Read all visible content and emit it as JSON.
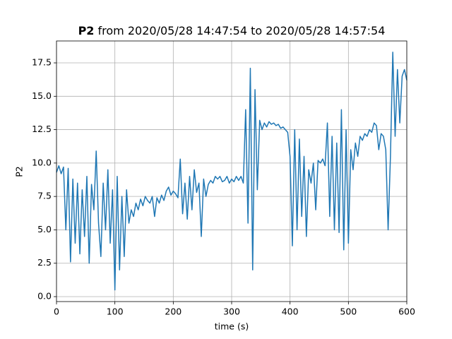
{
  "chart_data": {
    "type": "line",
    "title": {
      "bold": "P2",
      "text": "from 2020/05/28 14:47:54 to 2020/05/28 14:57:54"
    },
    "xlabel": "time (s)",
    "ylabel": "P2",
    "x": [
      0,
      4,
      8,
      12,
      16,
      20,
      24,
      28,
      32,
      36,
      40,
      44,
      48,
      52,
      56,
      60,
      64,
      68,
      72,
      76,
      80,
      84,
      88,
      92,
      96,
      100,
      104,
      108,
      112,
      116,
      120,
      124,
      128,
      132,
      136,
      140,
      144,
      148,
      152,
      156,
      160,
      164,
      168,
      172,
      176,
      180,
      184,
      188,
      192,
      196,
      200,
      204,
      208,
      212,
      216,
      220,
      224,
      228,
      232,
      236,
      240,
      244,
      248,
      252,
      256,
      260,
      264,
      268,
      272,
      276,
      280,
      284,
      288,
      292,
      296,
      300,
      304,
      308,
      312,
      316,
      320,
      324,
      328,
      332,
      336,
      340,
      344,
      348,
      352,
      356,
      360,
      364,
      368,
      372,
      376,
      380,
      384,
      388,
      392,
      396,
      400,
      404,
      408,
      412,
      416,
      420,
      424,
      428,
      432,
      436,
      440,
      444,
      448,
      452,
      456,
      460,
      464,
      468,
      472,
      476,
      480,
      484,
      488,
      492,
      496,
      500,
      504,
      508,
      512,
      516,
      520,
      524,
      528,
      532,
      536,
      540,
      544,
      548,
      552,
      556,
      560,
      564,
      568,
      572,
      576,
      580,
      584,
      588,
      592,
      596,
      600
    ],
    "series": [
      {
        "color": "#1f77b4",
        "values": [
          9.3,
          9.8,
          9.2,
          9.7,
          5.0,
          9.6,
          2.6,
          8.8,
          4.0,
          8.5,
          3.2,
          8.0,
          4.5,
          9.0,
          2.5,
          8.4,
          6.5,
          10.9,
          5.5,
          3.0,
          8.5,
          5.0,
          9.5,
          4.0,
          8.0,
          0.5,
          9.0,
          2.0,
          7.5,
          3.0,
          8.0,
          5.5,
          6.5,
          6.0,
          7.0,
          6.5,
          7.3,
          6.8,
          7.5,
          7.2,
          7.0,
          7.5,
          6.0,
          7.4,
          7.0,
          7.6,
          7.2,
          7.9,
          8.2,
          7.6,
          7.9,
          7.7,
          7.4,
          10.3,
          6.2,
          8.5,
          5.8,
          9.0,
          6.5,
          9.5,
          7.8,
          8.5,
          4.5,
          8.8,
          7.5,
          8.4,
          8.7,
          8.5,
          9.0,
          8.8,
          9.0,
          8.6,
          8.7,
          9.0,
          8.5,
          8.8,
          8.6,
          9.0,
          8.7,
          9.0,
          8.5,
          14.0,
          5.5,
          17.1,
          2.0,
          15.5,
          8.0,
          13.2,
          12.5,
          13.0,
          12.7,
          13.1,
          12.9,
          13.0,
          12.8,
          12.9,
          12.6,
          12.7,
          12.5,
          12.3,
          10.5,
          3.8,
          12.5,
          5.0,
          11.8,
          6.0,
          10.5,
          4.5,
          9.5,
          8.5,
          10.0,
          6.5,
          10.2,
          10.0,
          10.3,
          9.8,
          13.0,
          6.0,
          12.0,
          5.0,
          11.5,
          4.8,
          14.0,
          3.5,
          12.5,
          4.0,
          11.0,
          9.5,
          11.5,
          10.5,
          12.0,
          11.7,
          12.2,
          12.0,
          12.5,
          12.3,
          13.0,
          12.8,
          11.0,
          12.2,
          12.0,
          11.0,
          5.0,
          10.5,
          18.3,
          12.0,
          17.0,
          13.0,
          16.5,
          17.0,
          16.2
        ]
      }
    ],
    "xlim": [
      0,
      600
    ],
    "xticks": [
      0,
      100,
      200,
      300,
      400,
      500,
      600
    ],
    "ylim": [
      -0.37,
      19.14
    ],
    "yticks": [
      {
        "value": 0,
        "label": "0.0"
      },
      2.5,
      {
        "value": 5,
        "label": "5.0"
      },
      7.5,
      {
        "value": 10,
        "label": "10.0"
      },
      12.5,
      {
        "value": 15,
        "label": "15.0"
      },
      17.5
    ],
    "grid": true
  }
}
